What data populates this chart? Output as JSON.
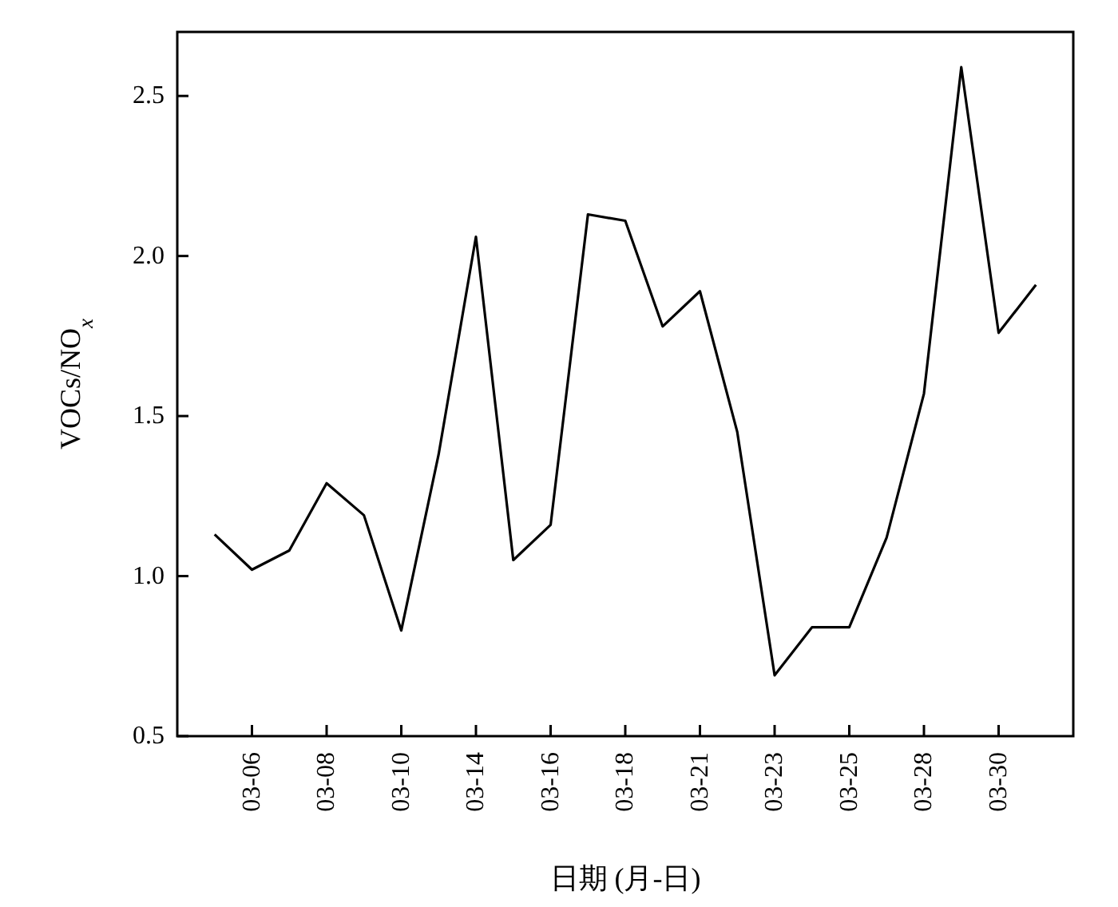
{
  "chart_data": {
    "type": "line",
    "xlabel": "日期 (月-日)",
    "ylabel": "VOCs/NO$_{x}$",
    "categories": [
      null,
      "03-06",
      null,
      "03-08",
      null,
      "03-10",
      null,
      "03-14",
      null,
      "03-16",
      null,
      "03-18",
      null,
      "03-21",
      null,
      "03-23",
      null,
      "03-25",
      null,
      "03-28",
      null,
      "03-30",
      null
    ],
    "series": [
      {
        "color": "#000000",
        "values": [
          1.13,
          1.02,
          1.08,
          1.29,
          1.19,
          0.83,
          1.38,
          2.06,
          1.05,
          1.16,
          2.13,
          2.11,
          1.78,
          1.89,
          1.45,
          0.69,
          0.84,
          0.84,
          1.12,
          1.57,
          2.59,
          1.76,
          1.91
        ]
      }
    ],
    "ylim": [
      0.5,
      2.7
    ],
    "yticks": [
      {
        "value": 0.5,
        "label": "0.5"
      },
      {
        "value": 1.0,
        "label": "1.0"
      },
      {
        "value": 1.5,
        "label": "1.5"
      },
      {
        "value": 2.0,
        "label": "2.0"
      },
      {
        "value": 2.5,
        "label": "2.5"
      }
    ],
    "grid": false,
    "marker": "none",
    "line_style": "solid"
  }
}
